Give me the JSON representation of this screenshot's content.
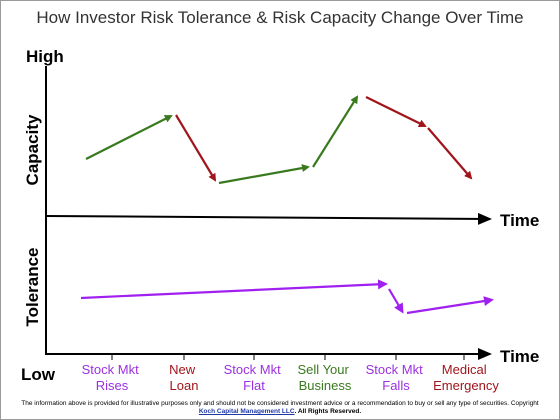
{
  "title": "How Investor Risk Tolerance & Risk Capacity Change Over Time",
  "labels": {
    "high": "High",
    "low": "Low",
    "capacity": "Capacity",
    "tolerance": "Tolerance",
    "time_upper": "Time",
    "time_lower": "Time"
  },
  "events": [
    {
      "line1": "Stock Mkt",
      "line2": "Rises",
      "color": "#9b30e0"
    },
    {
      "line1": "New",
      "line2": "Loan",
      "color": "#a0151b"
    },
    {
      "line1": "Stock Mkt",
      "line2": "Flat",
      "color": "#9b30e0"
    },
    {
      "line1": "Sell Your",
      "line2": "Business",
      "color": "#3a7a1e"
    },
    {
      "line1": "Stock Mkt",
      "line2": "Falls",
      "color": "#9b30e0"
    },
    {
      "line1": "Medical",
      "line2": "Emergency",
      "color": "#a0151b"
    }
  ],
  "colors": {
    "capacity_up": "#3a7a1e",
    "capacity_down": "#a0151b",
    "tolerance": "#a020f0",
    "axis": "#000000"
  },
  "footer": {
    "line1": "The information above is provided for illustrative purposes only and should not be considered investment advice or a recommendation to buy or sell any type of securities. Copyright",
    "link": "Koch Capital Management LLC",
    "rights": ". All Rights Reserved."
  }
}
